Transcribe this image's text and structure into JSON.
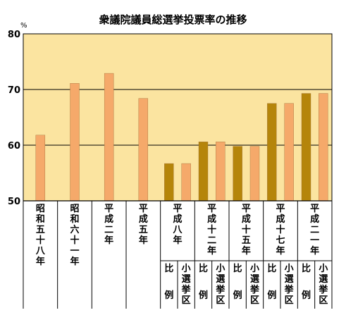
{
  "chart_data": {
    "type": "bar",
    "title": "衆議院議員総選挙投票率の推移",
    "y_unit": "%",
    "ylim": [
      50,
      80
    ],
    "yticks": [
      50,
      60,
      70,
      80
    ],
    "grid": true,
    "categories": [
      {
        "label": "昭和五十八年",
        "bars": [
          {
            "value": 61.8,
            "color": "#f5a96a"
          }
        ]
      },
      {
        "label": "昭和六十一年",
        "bars": [
          {
            "value": 71.1,
            "color": "#f5a96a"
          }
        ]
      },
      {
        "label": "平成二年",
        "bars": [
          {
            "value": 72.9,
            "color": "#f5a96a"
          }
        ]
      },
      {
        "label": "平成五年",
        "bars": [
          {
            "value": 68.4,
            "color": "#f5a96a"
          }
        ]
      },
      {
        "label": "平成八年",
        "bars": [
          {
            "sub": "比例",
            "value": 56.7,
            "color": "#b5850a"
          },
          {
            "sub": "小選挙区",
            "value": 56.7,
            "color": "#f5a96a"
          }
        ]
      },
      {
        "label": "平成十二年",
        "bars": [
          {
            "sub": "比例",
            "value": 60.6,
            "color": "#b5850a"
          },
          {
            "sub": "小選挙区",
            "value": 60.6,
            "color": "#f5a96a"
          }
        ]
      },
      {
        "label": "平成十五年",
        "bars": [
          {
            "sub": "比例",
            "value": 59.8,
            "color": "#b5850a"
          },
          {
            "sub": "小選挙区",
            "value": 59.8,
            "color": "#f5a96a"
          }
        ]
      },
      {
        "label": "平成十七年",
        "bars": [
          {
            "sub": "比例",
            "value": 67.5,
            "color": "#b5850a"
          },
          {
            "sub": "小選挙区",
            "value": 67.5,
            "color": "#f5a96a"
          }
        ]
      },
      {
        "label": "平成二一年",
        "bars": [
          {
            "sub": "比例",
            "value": 69.3,
            "color": "#b5850a"
          },
          {
            "sub": "小選挙区",
            "value": 69.3,
            "color": "#f5a96a"
          }
        ]
      }
    ],
    "colors": {
      "plot_background": "#fbe4a0",
      "grid": "#000000"
    }
  }
}
